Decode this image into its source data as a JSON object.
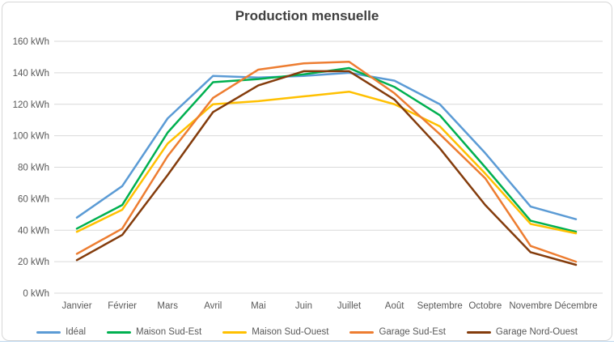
{
  "chart": {
    "title": "Production mensuelle"
  },
  "chart_data": {
    "type": "line",
    "title": "Production mensuelle",
    "categories": [
      "Janvier",
      "Février",
      "Mars",
      "Avril",
      "Mai",
      "Juin",
      "Juillet",
      "Août",
      "Septembre",
      "Octobre",
      "Novembre",
      "Décembre"
    ],
    "series": [
      {
        "name": "Idéal",
        "color": "#5B9BD5",
        "values": [
          48,
          68,
          111,
          138,
          137,
          138,
          140,
          135,
          120,
          89,
          55,
          47
        ]
      },
      {
        "name": "Maison Sud-Est",
        "color": "#00B050",
        "values": [
          41,
          56,
          102,
          134,
          136,
          139,
          143,
          131,
          113,
          80,
          46,
          39
        ]
      },
      {
        "name": "Maison Sud-Ouest",
        "color": "#FFC000",
        "values": [
          39,
          53,
          95,
          120,
          122,
          125,
          128,
          120,
          106,
          76,
          44,
          38
        ]
      },
      {
        "name": "Garage Sud-Est",
        "color": "#ED7D31",
        "values": [
          25,
          41,
          87,
          124,
          142,
          146,
          147,
          127,
          101,
          73,
          30,
          20
        ]
      },
      {
        "name": "Garage Nord-Ouest",
        "color": "#843C0C",
        "values": [
          21,
          37,
          75,
          115,
          132,
          141,
          141,
          123,
          92,
          56,
          26,
          18
        ]
      }
    ],
    "ylabel": "",
    "xlabel": "",
    "ylim": [
      0,
      160
    ],
    "ytick_step": 20,
    "ytick_suffix": " kWh",
    "grid": true,
    "legend_position": "bottom",
    "gridline_color": "#D9D9D9",
    "tick_color": "#595959",
    "title_color": "#404040"
  }
}
